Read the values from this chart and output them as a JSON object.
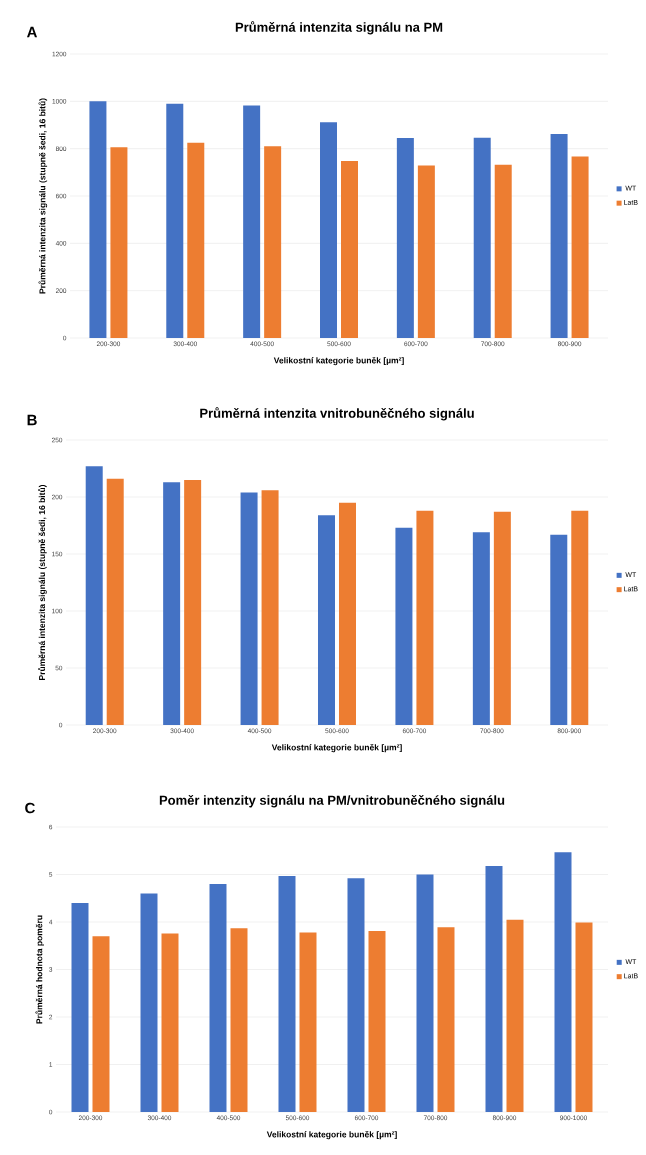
{
  "chart_data": [
    {
      "type": "bar",
      "title": "Průměrná intenzita signálu na PM",
      "xlabel": "Velikostní kategorie buněk [µm²]",
      "ylabel": "Průměrná intenzita signálu (stupně šedi, 16 bitů)",
      "annotations": [
        "A"
      ],
      "categories": [
        "200-300",
        "300-400",
        "400-500",
        "500-600",
        "600-700",
        "700-800",
        "800-900"
      ],
      "series": [
        {
          "name": "WT",
          "color": "#4472c4",
          "values": [
            1000,
            990,
            982,
            912,
            845,
            846,
            862
          ]
        },
        {
          "name": "LatB",
          "color": "#ed7d31",
          "values": [
            806,
            825,
            810,
            748,
            729,
            732,
            767
          ]
        }
      ],
      "ylim": [
        0,
        1200
      ],
      "yticks": [
        0,
        200,
        400,
        600,
        800,
        1000,
        1200
      ],
      "grid": "y",
      "legend": "right"
    },
    {
      "type": "bar",
      "title": "Průměrná intenzita vnitrobuněčného signálu",
      "xlabel": "Velikostní kategorie buněk [µm²]",
      "ylabel": "Průměrná intenzita signálu (stupně šedi, 16 bitů)",
      "annotations": [
        "B"
      ],
      "categories": [
        "200-300",
        "300-400",
        "400-500",
        "500-600",
        "600-700",
        "700-800",
        "800-900"
      ],
      "series": [
        {
          "name": "WT",
          "color": "#4472c4",
          "values": [
            227,
            213,
            204,
            184,
            173,
            169,
            167
          ]
        },
        {
          "name": "LatB",
          "color": "#ed7d31",
          "values": [
            216,
            215,
            206,
            195,
            188,
            187,
            188
          ]
        }
      ],
      "ylim": [
        0,
        250
      ],
      "yticks": [
        0,
        50,
        100,
        150,
        200,
        250
      ],
      "grid": "y",
      "legend": "right"
    },
    {
      "type": "bar",
      "title": "Poměr intenzity signálu na PM/vnitrobuněčného signálu",
      "xlabel": "Velikostní kategorie buněk [µm²]",
      "ylabel": "Průměrná hodnota poměru",
      "annotations": [
        "C"
      ],
      "categories": [
        "200-300",
        "300-400",
        "400-500",
        "500-600",
        "600-700",
        "700-800",
        "800-900",
        "900-1000"
      ],
      "series": [
        {
          "name": "WT",
          "color": "#4472c4",
          "values": [
            4.4,
            4.6,
            4.8,
            4.97,
            4.92,
            5.0,
            5.18,
            5.47
          ]
        },
        {
          "name": "LatB",
          "color": "#ed7d31",
          "values": [
            3.7,
            3.76,
            3.87,
            3.78,
            3.81,
            3.89,
            4.05,
            3.99
          ]
        }
      ],
      "ylim": [
        0,
        6
      ],
      "yticks": [
        0,
        1,
        2,
        3,
        4,
        5,
        6
      ],
      "grid": "y",
      "legend": "right"
    }
  ]
}
